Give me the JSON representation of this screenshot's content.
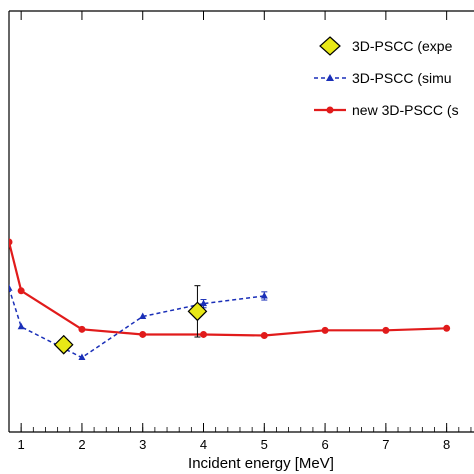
{
  "chart_data": {
    "type": "line",
    "title": "",
    "xlabel": "Incident energy [MeV]",
    "ylabel": "",
    "xlim": [
      0.8,
      8.45
    ],
    "ylim": [
      -1.2,
      7.0
    ],
    "x_ticks": [
      1,
      2,
      3,
      4,
      5,
      6,
      7,
      8
    ],
    "x_tick_labels": [
      "1",
      "2",
      "3",
      "4",
      "5",
      "6",
      "7",
      "8"
    ],
    "grid": false,
    "legend_position": "top-right",
    "series": [
      {
        "name": "3D-PSCC  (expe",
        "style": "markers-errorbars",
        "marker": "diamond",
        "color": "#e8e817",
        "x": [
          1.7,
          3.9
        ],
        "y": [
          0.5,
          1.15
        ],
        "yerr": [
          0.0,
          0.5
        ]
      },
      {
        "name": "3D-PSCC  (simu",
        "style": "dashed",
        "marker": "triangle",
        "color": "#1a2fb8",
        "x": [
          0.8,
          1.0,
          2.0,
          3.0,
          4.0,
          5.0
        ],
        "y": [
          1.6,
          0.85,
          0.25,
          1.05,
          1.3,
          1.45
        ],
        "yerr": [
          0,
          0,
          0,
          0,
          0.08,
          0.08
        ]
      },
      {
        "name": "new 3D-PSCC (s",
        "style": "solid",
        "marker": "circle",
        "color": "#e11b1b",
        "x": [
          0.8,
          1.0,
          2.0,
          3.0,
          4.0,
          5.0,
          6.0,
          7.0,
          8.0
        ],
        "y": [
          2.5,
          1.55,
          0.8,
          0.7,
          0.7,
          0.68,
          0.78,
          0.78,
          0.82
        ]
      }
    ]
  }
}
